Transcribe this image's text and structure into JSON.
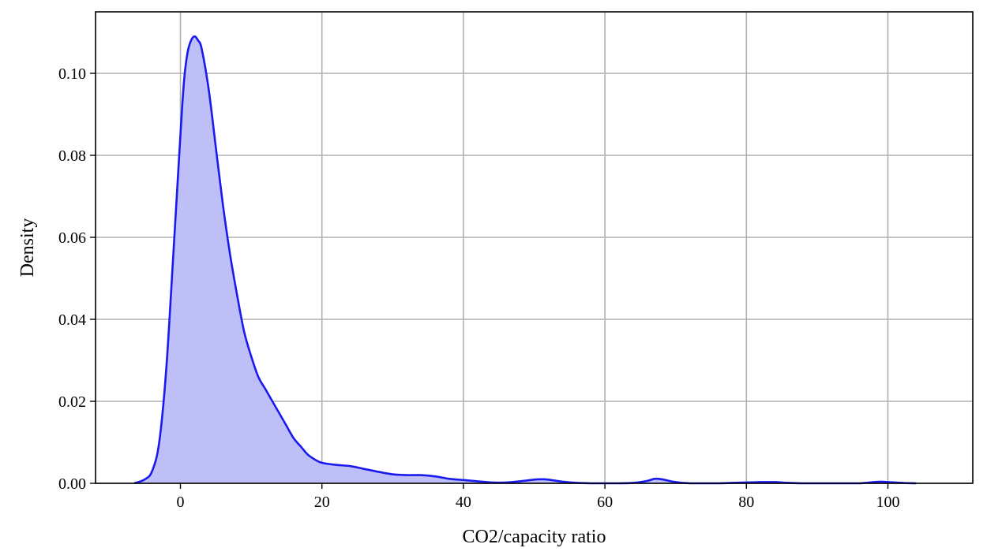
{
  "chart_data": {
    "type": "area",
    "title": "",
    "xlabel": "CO2/capacity ratio",
    "ylabel": "Density",
    "xlim": [
      -12,
      112
    ],
    "ylim": [
      0,
      0.115
    ],
    "x_ticks": [
      0,
      20,
      40,
      60,
      80,
      100
    ],
    "x_tick_labels": [
      "0",
      "20",
      "40",
      "60",
      "80",
      "100"
    ],
    "y_ticks": [
      0.0,
      0.02,
      0.04,
      0.06,
      0.08,
      0.1
    ],
    "y_tick_labels": [
      "0.00",
      "0.02",
      "0.04",
      "0.06",
      "0.08",
      "0.10"
    ],
    "grid": true,
    "legend": "none",
    "line_color": "#1a1aee",
    "fill_color": "#bfbff7",
    "series": [
      {
        "x": [
          -6.5,
          -5,
          -4,
          -3,
          -2,
          -1,
          0,
          0.5,
          1,
          1.5,
          2,
          2.5,
          3,
          4,
          5,
          6,
          7,
          8,
          9,
          10,
          11,
          12,
          13,
          14,
          15,
          16,
          17,
          18,
          19,
          20,
          22,
          24,
          26,
          28,
          30,
          32,
          34,
          36,
          38,
          40,
          42,
          44,
          46,
          48,
          50,
          51,
          52,
          54,
          56,
          58,
          60,
          62,
          64,
          66,
          67,
          68,
          70,
          72,
          74,
          76,
          78,
          80,
          82,
          83,
          84,
          86,
          88,
          90,
          92,
          94,
          96,
          98,
          99,
          100,
          102,
          104
        ],
        "y": [
          0.0,
          0.001,
          0.003,
          0.01,
          0.028,
          0.056,
          0.085,
          0.098,
          0.105,
          0.108,
          0.109,
          0.108,
          0.106,
          0.096,
          0.082,
          0.068,
          0.056,
          0.046,
          0.037,
          0.031,
          0.026,
          0.023,
          0.02,
          0.017,
          0.014,
          0.011,
          0.009,
          0.007,
          0.0058,
          0.005,
          0.0045,
          0.0042,
          0.0035,
          0.0028,
          0.0022,
          0.002,
          0.002,
          0.0017,
          0.0011,
          0.0008,
          0.0005,
          0.0002,
          0.0002,
          0.0005,
          0.0009,
          0.001,
          0.0009,
          0.0004,
          0.0001,
          0.0,
          0.0,
          0.0,
          0.0001,
          0.0006,
          0.0011,
          0.001,
          0.0003,
          0.0,
          0.0,
          0.0,
          0.0001,
          0.0002,
          0.0003,
          0.0003,
          0.0003,
          0.0001,
          0.0,
          0.0,
          0.0,
          0.0,
          0.0,
          0.0003,
          0.0004,
          0.0003,
          0.0001,
          0.0
        ]
      }
    ]
  }
}
